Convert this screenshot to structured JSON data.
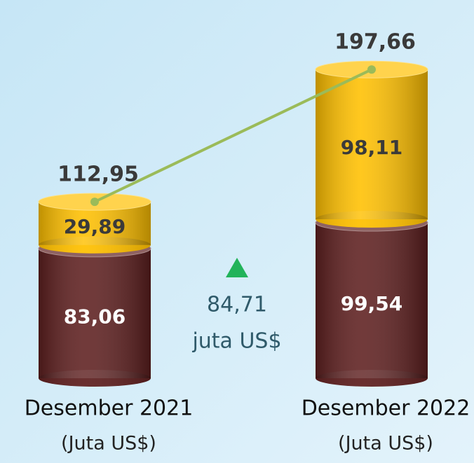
{
  "chart_data": {
    "type": "stacked_cylinder",
    "categories": [
      "Desember 2021",
      "Desember 2022"
    ],
    "category_unit": "(Juta US$)",
    "series": [
      {
        "name": "bottom",
        "color": "#5e1f1f",
        "values": [
          83.06,
          99.54
        ],
        "value_labels": [
          "83,06",
          "99,54"
        ]
      },
      {
        "name": "top",
        "color": "#ffc000",
        "values": [
          29.89,
          98.11
        ],
        "value_labels": [
          "29,89",
          "98,11"
        ]
      }
    ],
    "totals": {
      "color": "#9bbb59",
      "values": [
        112.95,
        197.66
      ],
      "value_labels": [
        "112,95",
        "197,66"
      ]
    },
    "change": {
      "value": 84.71,
      "label": "84,71",
      "unit": "juta US$",
      "color": "#22b35a"
    }
  }
}
